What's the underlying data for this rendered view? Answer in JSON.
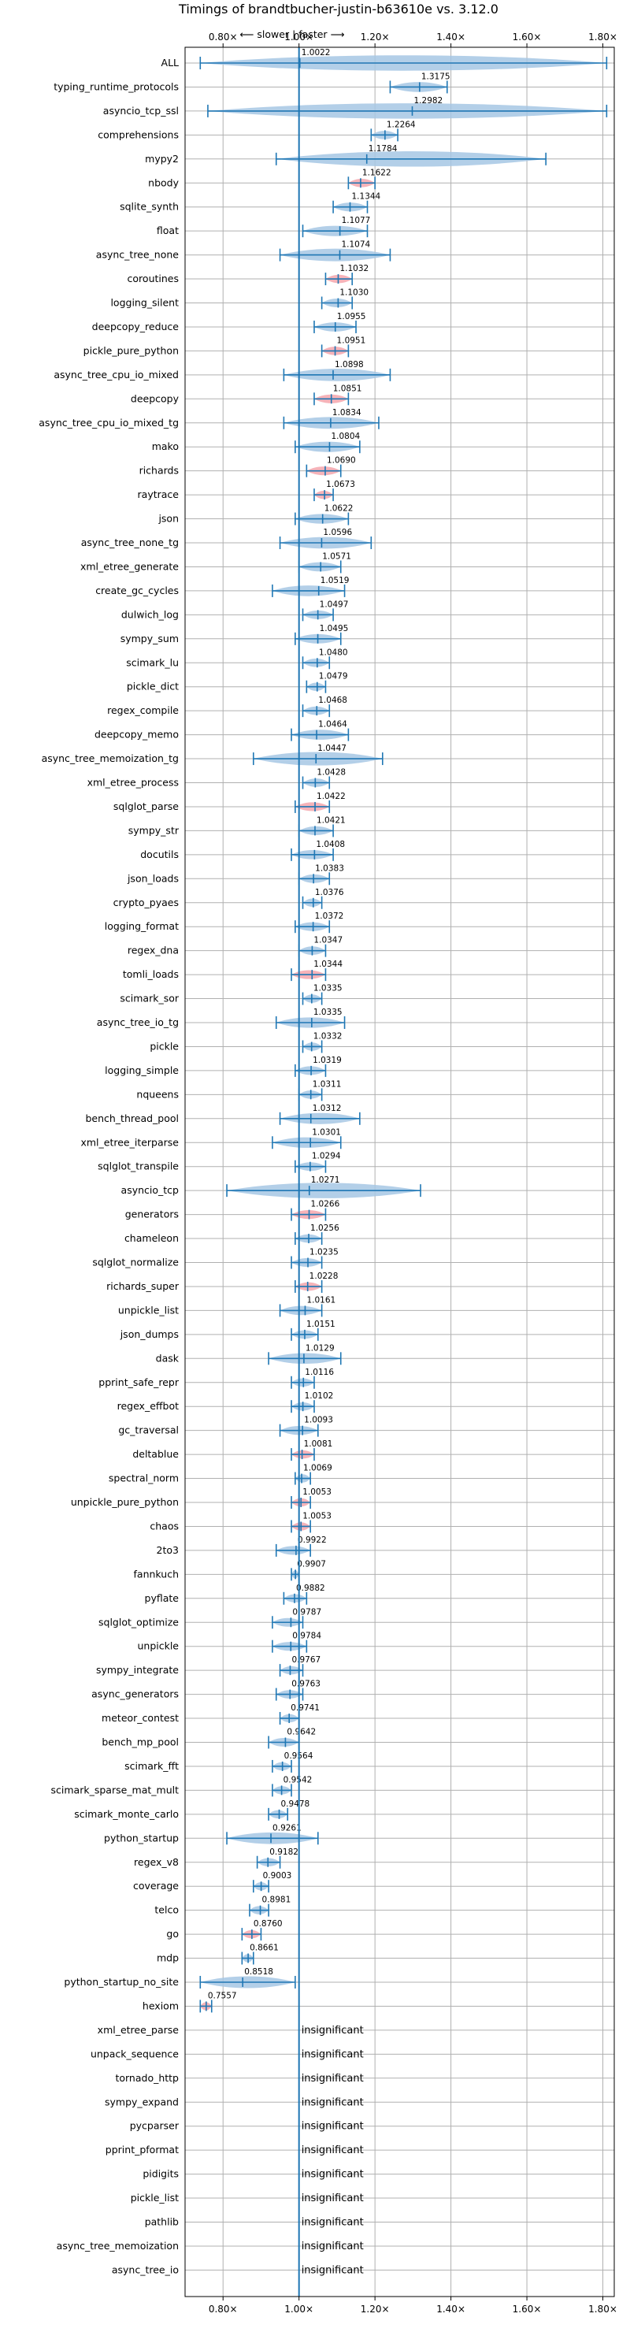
{
  "chart_data": {
    "type": "violin",
    "title": "Timings of brandtbucher-justin-b63610e vs. 3.12.0",
    "direction_note": "⟵ slower | faster ⟶",
    "xlim": [
      0.7,
      1.83
    ],
    "xticks": [
      0.8,
      1.0,
      1.2,
      1.4,
      1.6,
      1.8
    ],
    "xtick_labels": [
      "0.80×",
      "1.00×",
      "1.20×",
      "1.40×",
      "1.60×",
      "1.80×"
    ],
    "grid": true,
    "reference_line": 1.0,
    "colors": {
      "violin": "#a6c7e4",
      "significant": "#f4a6ad",
      "line": "#1f77b4",
      "grid": "#b0b0b0"
    },
    "rows": [
      {
        "name": "ALL",
        "value": 1.0022,
        "min": 0.74,
        "max": 1.81,
        "sig": false
      },
      {
        "name": "typing_runtime_protocols",
        "value": 1.3175,
        "min": 1.24,
        "max": 1.39,
        "sig": false
      },
      {
        "name": "asyncio_tcp_ssl",
        "value": 1.2982,
        "min": 0.76,
        "max": 1.81,
        "sig": false
      },
      {
        "name": "comprehensions",
        "value": 1.2264,
        "min": 1.19,
        "max": 1.26,
        "sig": false
      },
      {
        "name": "mypy2",
        "value": 1.1784,
        "min": 0.94,
        "max": 1.65,
        "sig": false
      },
      {
        "name": "nbody",
        "value": 1.1622,
        "min": 1.13,
        "max": 1.2,
        "sig": true
      },
      {
        "name": "sqlite_synth",
        "value": 1.1344,
        "min": 1.09,
        "max": 1.18,
        "sig": false
      },
      {
        "name": "float",
        "value": 1.1077,
        "min": 1.01,
        "max": 1.18,
        "sig": false
      },
      {
        "name": "async_tree_none",
        "value": 1.1074,
        "min": 0.95,
        "max": 1.24,
        "sig": false
      },
      {
        "name": "coroutines",
        "value": 1.1032,
        "min": 1.07,
        "max": 1.14,
        "sig": true
      },
      {
        "name": "logging_silent",
        "value": 1.103,
        "min": 1.06,
        "max": 1.14,
        "sig": false
      },
      {
        "name": "deepcopy_reduce",
        "value": 1.0955,
        "min": 1.04,
        "max": 1.15,
        "sig": false
      },
      {
        "name": "pickle_pure_python",
        "value": 1.0951,
        "min": 1.06,
        "max": 1.13,
        "sig": true
      },
      {
        "name": "async_tree_cpu_io_mixed",
        "value": 1.0898,
        "min": 0.96,
        "max": 1.24,
        "sig": false
      },
      {
        "name": "deepcopy",
        "value": 1.0851,
        "min": 1.04,
        "max": 1.13,
        "sig": true
      },
      {
        "name": "async_tree_cpu_io_mixed_tg",
        "value": 1.0834,
        "min": 0.96,
        "max": 1.21,
        "sig": false
      },
      {
        "name": "mako",
        "value": 1.0804,
        "min": 0.99,
        "max": 1.16,
        "sig": false
      },
      {
        "name": "richards",
        "value": 1.069,
        "min": 1.02,
        "max": 1.11,
        "sig": true
      },
      {
        "name": "raytrace",
        "value": 1.0673,
        "min": 1.04,
        "max": 1.09,
        "sig": true
      },
      {
        "name": "json",
        "value": 1.0622,
        "min": 0.99,
        "max": 1.13,
        "sig": false
      },
      {
        "name": "async_tree_none_tg",
        "value": 1.0596,
        "min": 0.95,
        "max": 1.19,
        "sig": false
      },
      {
        "name": "xml_etree_generate",
        "value": 1.0571,
        "min": 1.0,
        "max": 1.11,
        "sig": false
      },
      {
        "name": "create_gc_cycles",
        "value": 1.0519,
        "min": 0.93,
        "max": 1.12,
        "sig": false
      },
      {
        "name": "dulwich_log",
        "value": 1.0497,
        "min": 1.01,
        "max": 1.09,
        "sig": false
      },
      {
        "name": "sympy_sum",
        "value": 1.0495,
        "min": 0.99,
        "max": 1.11,
        "sig": false
      },
      {
        "name": "scimark_lu",
        "value": 1.048,
        "min": 1.01,
        "max": 1.08,
        "sig": false
      },
      {
        "name": "pickle_dict",
        "value": 1.0479,
        "min": 1.02,
        "max": 1.07,
        "sig": false
      },
      {
        "name": "regex_compile",
        "value": 1.0468,
        "min": 1.01,
        "max": 1.08,
        "sig": false
      },
      {
        "name": "deepcopy_memo",
        "value": 1.0464,
        "min": 0.98,
        "max": 1.13,
        "sig": false
      },
      {
        "name": "async_tree_memoization_tg",
        "value": 1.0447,
        "min": 0.88,
        "max": 1.22,
        "sig": false
      },
      {
        "name": "xml_etree_process",
        "value": 1.0428,
        "min": 1.01,
        "max": 1.08,
        "sig": false
      },
      {
        "name": "sqlglot_parse",
        "value": 1.0422,
        "min": 0.99,
        "max": 1.08,
        "sig": true
      },
      {
        "name": "sympy_str",
        "value": 1.0421,
        "min": 1.0,
        "max": 1.09,
        "sig": false
      },
      {
        "name": "docutils",
        "value": 1.0408,
        "min": 0.98,
        "max": 1.09,
        "sig": false
      },
      {
        "name": "json_loads",
        "value": 1.0383,
        "min": 1.0,
        "max": 1.08,
        "sig": false
      },
      {
        "name": "crypto_pyaes",
        "value": 1.0376,
        "min": 1.01,
        "max": 1.06,
        "sig": false
      },
      {
        "name": "logging_format",
        "value": 1.0372,
        "min": 0.99,
        "max": 1.08,
        "sig": false
      },
      {
        "name": "regex_dna",
        "value": 1.0347,
        "min": 1.0,
        "max": 1.07,
        "sig": false
      },
      {
        "name": "tomli_loads",
        "value": 1.0344,
        "min": 0.98,
        "max": 1.07,
        "sig": true
      },
      {
        "name": "scimark_sor",
        "value": 1.0335,
        "min": 1.01,
        "max": 1.06,
        "sig": false
      },
      {
        "name": "async_tree_io_tg",
        "value": 1.0335,
        "min": 0.94,
        "max": 1.12,
        "sig": false
      },
      {
        "name": "pickle",
        "value": 1.0332,
        "min": 1.01,
        "max": 1.06,
        "sig": false
      },
      {
        "name": "logging_simple",
        "value": 1.0319,
        "min": 0.99,
        "max": 1.07,
        "sig": false
      },
      {
        "name": "nqueens",
        "value": 1.0311,
        "min": 1.0,
        "max": 1.06,
        "sig": false
      },
      {
        "name": "bench_thread_pool",
        "value": 1.0312,
        "min": 0.95,
        "max": 1.16,
        "sig": false
      },
      {
        "name": "xml_etree_iterparse",
        "value": 1.0301,
        "min": 0.93,
        "max": 1.11,
        "sig": false
      },
      {
        "name": "sqlglot_transpile",
        "value": 1.0294,
        "min": 0.99,
        "max": 1.07,
        "sig": false
      },
      {
        "name": "asyncio_tcp",
        "value": 1.0271,
        "min": 0.81,
        "max": 1.32,
        "sig": false
      },
      {
        "name": "generators",
        "value": 1.0266,
        "min": 0.98,
        "max": 1.07,
        "sig": true
      },
      {
        "name": "chameleon",
        "value": 1.0256,
        "min": 0.99,
        "max": 1.06,
        "sig": false
      },
      {
        "name": "sqlglot_normalize",
        "value": 1.0235,
        "min": 0.98,
        "max": 1.06,
        "sig": false
      },
      {
        "name": "richards_super",
        "value": 1.0228,
        "min": 0.99,
        "max": 1.06,
        "sig": true
      },
      {
        "name": "unpickle_list",
        "value": 1.0161,
        "min": 0.95,
        "max": 1.06,
        "sig": false
      },
      {
        "name": "json_dumps",
        "value": 1.0151,
        "min": 0.98,
        "max": 1.05,
        "sig": false
      },
      {
        "name": "dask",
        "value": 1.0129,
        "min": 0.92,
        "max": 1.11,
        "sig": false
      },
      {
        "name": "pprint_safe_repr",
        "value": 1.0116,
        "min": 0.98,
        "max": 1.04,
        "sig": false
      },
      {
        "name": "regex_effbot",
        "value": 1.0102,
        "min": 0.98,
        "max": 1.04,
        "sig": false
      },
      {
        "name": "gc_traversal",
        "value": 1.0093,
        "min": 0.95,
        "max": 1.05,
        "sig": false
      },
      {
        "name": "deltablue",
        "value": 1.0081,
        "min": 0.98,
        "max": 1.04,
        "sig": true
      },
      {
        "name": "spectral_norm",
        "value": 1.0069,
        "min": 0.99,
        "max": 1.03,
        "sig": false
      },
      {
        "name": "unpickle_pure_python",
        "value": 1.0053,
        "min": 0.98,
        "max": 1.03,
        "sig": true
      },
      {
        "name": "chaos",
        "value": 1.0053,
        "min": 0.98,
        "max": 1.03,
        "sig": true
      },
      {
        "name": "2to3",
        "value": 0.9922,
        "min": 0.94,
        "max": 1.03,
        "sig": false
      },
      {
        "name": "fannkuch",
        "value": 0.9907,
        "min": 0.98,
        "max": 1.0,
        "sig": false
      },
      {
        "name": "pyflate",
        "value": 0.9882,
        "min": 0.96,
        "max": 1.02,
        "sig": false
      },
      {
        "name": "sqlglot_optimize",
        "value": 0.9787,
        "min": 0.93,
        "max": 1.01,
        "sig": false
      },
      {
        "name": "unpickle",
        "value": 0.9784,
        "min": 0.93,
        "max": 1.02,
        "sig": false
      },
      {
        "name": "sympy_integrate",
        "value": 0.9767,
        "min": 0.95,
        "max": 1.01,
        "sig": false
      },
      {
        "name": "async_generators",
        "value": 0.9763,
        "min": 0.94,
        "max": 1.01,
        "sig": false
      },
      {
        "name": "meteor_contest",
        "value": 0.9741,
        "min": 0.95,
        "max": 1.0,
        "sig": false
      },
      {
        "name": "bench_mp_pool",
        "value": 0.9642,
        "min": 0.92,
        "max": 1.0,
        "sig": false
      },
      {
        "name": "scimark_fft",
        "value": 0.9564,
        "min": 0.93,
        "max": 0.98,
        "sig": false
      },
      {
        "name": "scimark_sparse_mat_mult",
        "value": 0.9542,
        "min": 0.93,
        "max": 0.98,
        "sig": false
      },
      {
        "name": "scimark_monte_carlo",
        "value": 0.9478,
        "min": 0.92,
        "max": 0.97,
        "sig": false
      },
      {
        "name": "python_startup",
        "value": 0.9261,
        "min": 0.81,
        "max": 1.05,
        "sig": false
      },
      {
        "name": "regex_v8",
        "value": 0.9182,
        "min": 0.89,
        "max": 0.95,
        "sig": false
      },
      {
        "name": "coverage",
        "value": 0.9003,
        "min": 0.88,
        "max": 0.92,
        "sig": false
      },
      {
        "name": "telco",
        "value": 0.8981,
        "min": 0.87,
        "max": 0.92,
        "sig": false
      },
      {
        "name": "go",
        "value": 0.876,
        "min": 0.85,
        "max": 0.9,
        "sig": true
      },
      {
        "name": "mdp",
        "value": 0.8661,
        "min": 0.85,
        "max": 0.88,
        "sig": false
      },
      {
        "name": "python_startup_no_site",
        "value": 0.8518,
        "min": 0.74,
        "max": 0.99,
        "sig": false
      },
      {
        "name": "hexiom",
        "value": 0.7557,
        "min": 0.74,
        "max": 0.77,
        "sig": true
      },
      {
        "name": "xml_etree_parse",
        "insignificant": true
      },
      {
        "name": "unpack_sequence",
        "insignificant": true
      },
      {
        "name": "tornado_http",
        "insignificant": true
      },
      {
        "name": "sympy_expand",
        "insignificant": true
      },
      {
        "name": "pycparser",
        "insignificant": true
      },
      {
        "name": "pprint_pformat",
        "insignificant": true
      },
      {
        "name": "pidigits",
        "insignificant": true
      },
      {
        "name": "pickle_list",
        "insignificant": true
      },
      {
        "name": "pathlib",
        "insignificant": true
      },
      {
        "name": "async_tree_memoization",
        "insignificant": true
      },
      {
        "name": "async_tree_io",
        "insignificant": true
      }
    ],
    "insignificant_label": "insignificant",
    "number_format_decimals": 4
  }
}
